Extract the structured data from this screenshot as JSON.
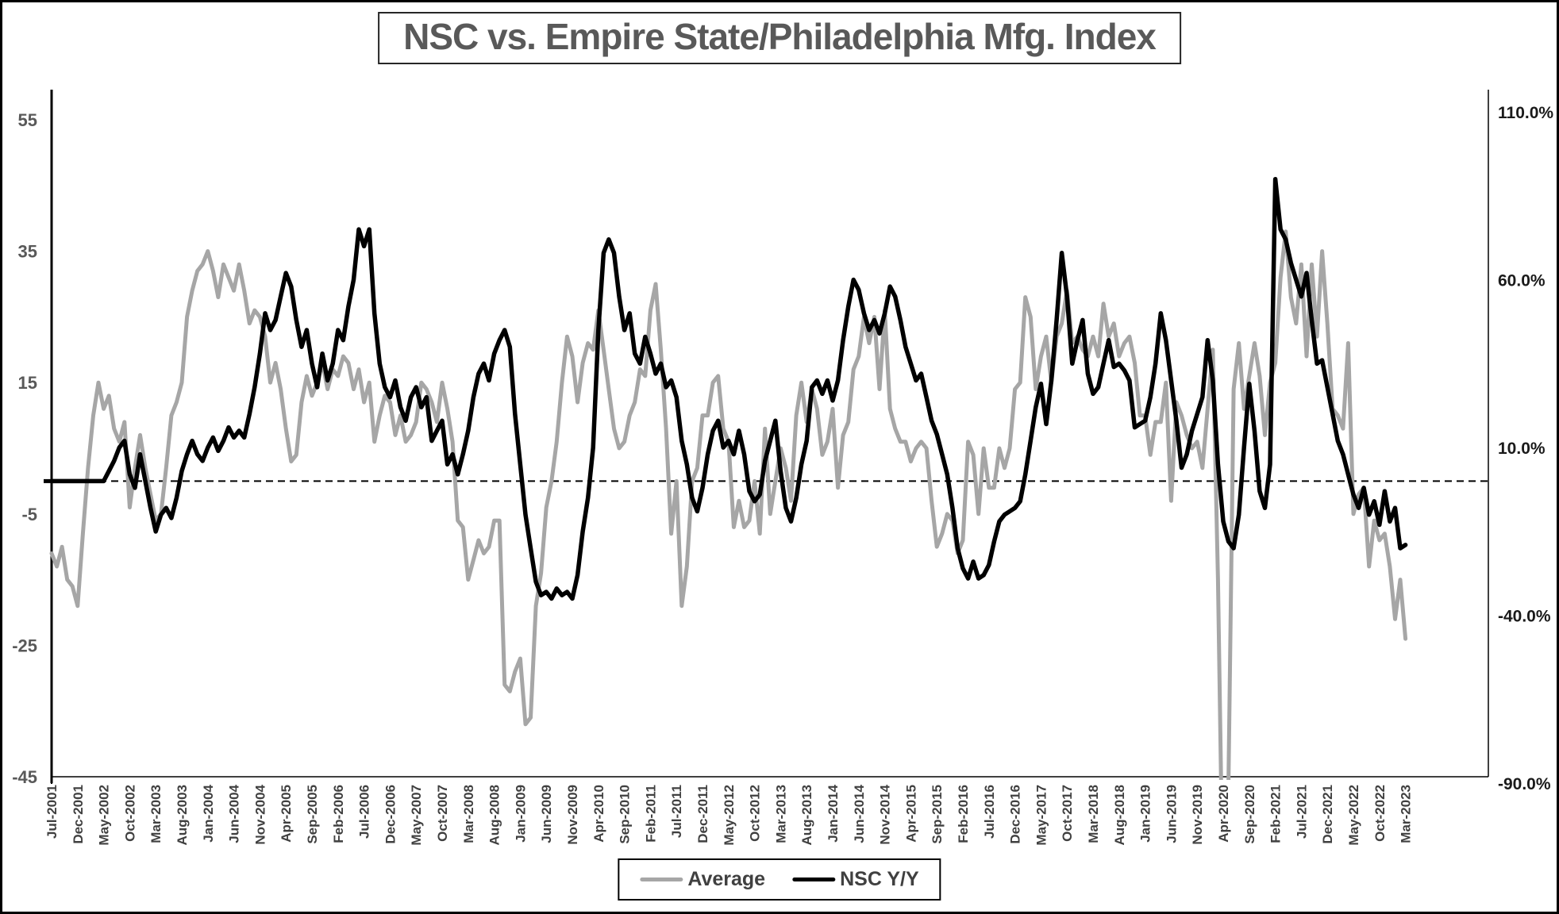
{
  "title": "NSC vs. Empire State/Philadelphia Mfg. Index",
  "legend": {
    "items": [
      {
        "label": "Average",
        "color": "#a6a6a6"
      },
      {
        "label": "NSC Y/Y",
        "color": "#000000"
      }
    ]
  },
  "colors": {
    "average_line": "#a6a6a6",
    "nsc_line": "#000000",
    "title_text": "#595959",
    "left_axis_text": "#595959",
    "right_axis_text": "#1a1a1a",
    "x_axis_text": "#404040",
    "zero_line": "#000000"
  },
  "chart_data": {
    "type": "line",
    "x_start": "Jul-2001",
    "x_end": "Mar-2023",
    "x_step_months": 1,
    "x_tick_labels": [
      "Jul-2001",
      "Dec-2001",
      "May-2002",
      "Oct-2002",
      "Mar-2003",
      "Aug-2003",
      "Jan-2004",
      "Jun-2004",
      "Nov-2004",
      "Apr-2005",
      "Sep-2005",
      "Feb-2006",
      "Jul-2006",
      "Dec-2006",
      "May-2007",
      "Oct-2007",
      "Mar-2008",
      "Aug-2008",
      "Jan-2009",
      "Jun-2009",
      "Nov-2009",
      "Apr-2010",
      "Sep-2010",
      "Feb-2011",
      "Jul-2011",
      "Dec-2011",
      "May-2012",
      "Oct-2012",
      "Mar-2013",
      "Aug-2013",
      "Jan-2014",
      "Jun-2014",
      "Nov-2014",
      "Apr-2015",
      "Sep-2015",
      "Feb-2016",
      "Jul-2016",
      "Dec-2016",
      "May-2017",
      "Oct-2017",
      "Mar-2018",
      "Aug-2018",
      "Jan-2019",
      "Jun-2019",
      "Nov-2019",
      "Apr-2020",
      "Sep-2020",
      "Feb-2021",
      "Jul-2021",
      "Dec-2021",
      "May-2022",
      "Oct-2022",
      "Mar-2023"
    ],
    "x_tick_every": 5,
    "left_axis": {
      "ticks": [
        55,
        35,
        15,
        -5,
        -25,
        -45
      ],
      "min": -45,
      "max": 59
    },
    "right_axis": {
      "ticks": [
        "110.0%",
        "60.0%",
        "10.0%",
        "-40.0%",
        "-90.0%"
      ],
      "tick_values": [
        110,
        60,
        10,
        -40,
        -90
      ]
    },
    "zero_reference_line": true,
    "legend_position": "bottom",
    "series": [
      {
        "name": "Average",
        "axis": "left",
        "color": "#a6a6a6",
        "values": [
          -11,
          -13,
          -10,
          -15,
          -16,
          -19,
          -8,
          2,
          10,
          15,
          11,
          13,
          8,
          6,
          9,
          -4,
          2,
          7,
          2,
          -2,
          -6,
          -5,
          2,
          10,
          12,
          15,
          25,
          29,
          32,
          33,
          35,
          32,
          28,
          33,
          31,
          29,
          33,
          29,
          24,
          26,
          25,
          22,
          15,
          18,
          14,
          8,
          3,
          4,
          12,
          16,
          13,
          15,
          18,
          14,
          17,
          16,
          19,
          18,
          14,
          17,
          12,
          15,
          6,
          10,
          13,
          12,
          7,
          10,
          6,
          7,
          9,
          15,
          14,
          12,
          9,
          15,
          11,
          6,
          -6,
          -7,
          -15,
          -12,
          -9,
          -11,
          -10,
          -6,
          -6,
          -31,
          -32,
          -29,
          -27,
          -37,
          -36,
          -19,
          -14,
          -4,
          0,
          6,
          15,
          22,
          19,
          12,
          18,
          21,
          20,
          26,
          20,
          14,
          8,
          5,
          6,
          10,
          12,
          17,
          16,
          26,
          30,
          20,
          8,
          -8,
          0,
          -19,
          -13,
          0,
          2,
          10,
          10,
          15,
          16,
          8,
          6,
          -7,
          -3,
          -7,
          -6,
          0,
          -8,
          8,
          -5,
          0,
          5,
          2,
          -3,
          10,
          15,
          9,
          14,
          11,
          4,
          6,
          11,
          -1,
          7,
          9,
          17,
          19,
          25,
          21,
          25,
          14,
          26,
          11,
          8,
          6,
          6,
          3,
          5,
          6,
          5,
          -3,
          -10,
          -8,
          -5,
          -6,
          -11,
          -9,
          6,
          4,
          -5,
          5,
          -1,
          -1,
          5,
          2,
          5,
          14,
          15,
          28,
          25,
          14,
          19,
          22,
          15,
          22,
          24,
          29,
          21,
          22,
          20,
          19,
          22,
          19,
          27,
          22,
          24,
          19,
          21,
          22,
          18,
          10,
          10,
          4,
          9,
          9,
          15,
          -3,
          12,
          10,
          7,
          5,
          6,
          2,
          11,
          20,
          -15,
          -67,
          -46,
          14,
          21,
          11,
          16,
          21,
          16,
          7,
          15,
          18,
          31,
          38,
          28,
          24,
          33,
          19,
          33,
          22,
          35,
          24,
          11,
          10,
          8,
          21,
          -5,
          -2,
          -1,
          -13,
          -6,
          -9,
          -8,
          -13,
          -21,
          -15,
          -24
        ]
      },
      {
        "name": "NSC Y/Y",
        "axis": "right",
        "color": "#000000",
        "values": [
          0,
          0,
          0,
          0,
          0,
          0,
          0,
          0,
          0,
          0,
          0,
          3,
          6,
          10,
          12,
          2,
          -2,
          8,
          0,
          -8,
          -15,
          -10,
          -8,
          -11,
          -5,
          3,
          8,
          12,
          8,
          6,
          10,
          13,
          9,
          12,
          16,
          13,
          15,
          13,
          20,
          28,
          38,
          50,
          45,
          48,
          55,
          62,
          58,
          48,
          40,
          45,
          35,
          28,
          38,
          30,
          35,
          45,
          42,
          52,
          60,
          75,
          70,
          75,
          50,
          35,
          28,
          25,
          30,
          22,
          18,
          25,
          28,
          22,
          25,
          12,
          15,
          18,
          5,
          8,
          2,
          8,
          15,
          25,
          32,
          35,
          30,
          38,
          42,
          45,
          40,
          20,
          5,
          -10,
          -20,
          -30,
          -34,
          -33,
          -35,
          -32,
          -34,
          -33,
          -35,
          -28,
          -15,
          -5,
          10,
          45,
          68,
          72,
          68,
          55,
          45,
          50,
          38,
          35,
          43,
          38,
          32,
          35,
          28,
          30,
          25,
          12,
          5,
          -5,
          -9,
          -2,
          8,
          15,
          18,
          10,
          12,
          8,
          15,
          8,
          -3,
          -6,
          -4,
          6,
          12,
          18,
          3,
          -8,
          -12,
          -5,
          5,
          12,
          28,
          30,
          26,
          30,
          24,
          30,
          42,
          52,
          60,
          57,
          50,
          45,
          48,
          44,
          50,
          58,
          55,
          48,
          40,
          35,
          30,
          32,
          25,
          18,
          14,
          8,
          2,
          -8,
          -20,
          -26,
          -29,
          -24,
          -29,
          -28,
          -25,
          -18,
          -12,
          -10,
          -9,
          -8,
          -6,
          2,
          12,
          22,
          29,
          17,
          30,
          48,
          68,
          55,
          35,
          42,
          48,
          32,
          26,
          28,
          35,
          42,
          34,
          35,
          33,
          30,
          16,
          17,
          18,
          25,
          35,
          50,
          42,
          30,
          18,
          4,
          8,
          15,
          20,
          25,
          42,
          30,
          5,
          -12,
          -18,
          -20,
          -10,
          10,
          29,
          15,
          -3,
          -8,
          5,
          90,
          75,
          72,
          65,
          60,
          55,
          62,
          48,
          35,
          36,
          28,
          20,
          12,
          8,
          2,
          -4,
          -8,
          -2,
          -10,
          -6,
          -13,
          -3,
          -12,
          -8,
          -20,
          -19
        ]
      }
    ]
  }
}
